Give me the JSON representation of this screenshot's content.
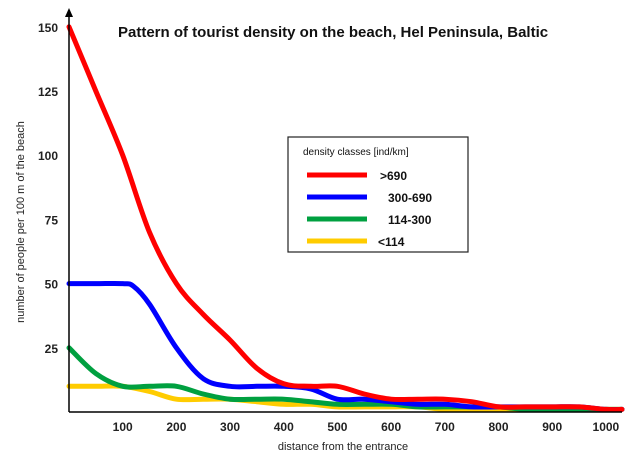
{
  "chart_data": {
    "type": "line",
    "title": "Pattern of tourist density on the beach, Hel Peninsula, Baltic",
    "xlabel": "distance from the entrance",
    "ylabel": "number of people per 100 m of the beach",
    "xlim": [
      0,
      1030
    ],
    "ylim": [
      0,
      155
    ],
    "x_ticks": [
      100,
      200,
      300,
      400,
      500,
      600,
      700,
      800,
      900,
      1000
    ],
    "y_ticks": [
      25,
      50,
      75,
      100,
      125,
      150
    ],
    "legend": {
      "title": "density classes [ind/km]",
      "placement": "center-right"
    },
    "series": [
      {
        "name": ">690",
        "color": "#ff0000",
        "x": [
          0,
          50,
          100,
          150,
          200,
          250,
          300,
          350,
          400,
          450,
          500,
          550,
          600,
          650,
          700,
          750,
          800,
          850,
          900,
          950,
          1000,
          1030
        ],
        "values": [
          150,
          125,
          100,
          70,
          50,
          38,
          28,
          17,
          11,
          10,
          10,
          7,
          5,
          5,
          5,
          4,
          2,
          2,
          2,
          2,
          1,
          1
        ]
      },
      {
        "name": "300-690",
        "color": "#0000ff",
        "x": [
          0,
          50,
          100,
          120,
          150,
          200,
          250,
          300,
          350,
          400,
          450,
          500,
          550,
          600,
          650,
          700,
          750,
          800,
          850,
          900,
          950,
          1000,
          1030
        ],
        "values": [
          50,
          50,
          50,
          49,
          42,
          25,
          13,
          10,
          10,
          10,
          9,
          5,
          5,
          4,
          3,
          3,
          2,
          2,
          2,
          2,
          2,
          1,
          1
        ]
      },
      {
        "name": "114-300",
        "color": "#00a040",
        "x": [
          0,
          50,
          100,
          150,
          200,
          250,
          300,
          350,
          400,
          450,
          500,
          550,
          600,
          650,
          700,
          750,
          800,
          850,
          900,
          950,
          1000,
          1030
        ],
        "values": [
          25,
          15,
          10,
          10,
          10,
          7,
          5,
          5,
          5,
          4,
          3,
          3,
          3,
          2,
          2,
          2,
          2,
          1,
          1,
          1,
          1,
          1
        ]
      },
      {
        "name": "<114",
        "color": "#ffcc00",
        "x": [
          0,
          50,
          100,
          150,
          200,
          250,
          300,
          350,
          400,
          450,
          500,
          550,
          600,
          650,
          700,
          750,
          800,
          850,
          900,
          950,
          1000,
          1030
        ],
        "values": [
          10,
          10,
          10,
          8,
          5,
          5,
          5,
          4,
          3,
          3,
          2,
          2,
          2,
          2,
          1,
          1,
          1,
          1,
          1,
          1,
          1,
          1
        ]
      }
    ]
  }
}
